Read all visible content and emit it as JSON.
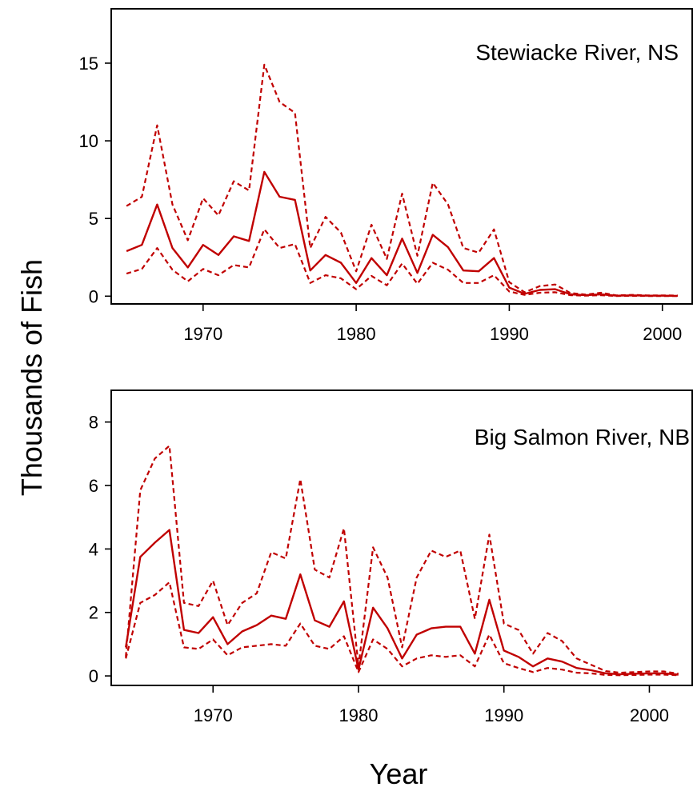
{
  "figure": {
    "ylabel": "Thousands of Fish",
    "xlabel": "Year",
    "line_color": "#c00000"
  },
  "chart_data": [
    {
      "type": "line",
      "title": "Stewiacke River, NS",
      "xlabel": "",
      "ylabel": "",
      "xlim": [
        1964,
        2002
      ],
      "ylim": [
        -0.5,
        18.5
      ],
      "xticks": [
        1970,
        1980,
        1990,
        2000
      ],
      "yticks": [
        0,
        5,
        10,
        15
      ],
      "grid": false,
      "x": [
        1965,
        1966,
        1967,
        1968,
        1969,
        1970,
        1971,
        1972,
        1973,
        1974,
        1975,
        1976,
        1977,
        1978,
        1979,
        1980,
        1981,
        1982,
        1983,
        1984,
        1985,
        1986,
        1987,
        1988,
        1989,
        1990,
        1991,
        1992,
        1993,
        1994,
        1995,
        1996,
        1997,
        1998,
        1999,
        2000,
        2001
      ],
      "series": [
        {
          "role": "upper",
          "style": "dashed",
          "values": [
            5.8,
            6.4,
            11.0,
            5.9,
            3.6,
            6.3,
            5.2,
            7.4,
            6.8,
            14.9,
            12.5,
            11.8,
            3.1,
            5.1,
            4.1,
            1.6,
            4.6,
            2.4,
            6.6,
            2.6,
            7.3,
            5.9,
            3.1,
            2.8,
            4.3,
            0.9,
            0.25,
            0.65,
            0.75,
            0.2,
            0.1,
            0.22,
            0.05,
            0.08,
            0.05,
            0.05,
            0.04
          ]
        },
        {
          "role": "estimate",
          "style": "solid",
          "values": [
            2.9,
            3.3,
            5.9,
            3.1,
            1.85,
            3.3,
            2.65,
            3.85,
            3.55,
            8.0,
            6.4,
            6.2,
            1.65,
            2.65,
            2.15,
            0.85,
            2.45,
            1.35,
            3.7,
            1.5,
            3.95,
            3.15,
            1.65,
            1.6,
            2.45,
            0.55,
            0.15,
            0.4,
            0.45,
            0.12,
            0.06,
            0.12,
            0.03,
            0.05,
            0.03,
            0.03,
            0.02
          ]
        },
        {
          "role": "lower",
          "style": "dashed",
          "values": [
            1.45,
            1.75,
            3.1,
            1.7,
            0.95,
            1.75,
            1.35,
            2.0,
            1.85,
            4.3,
            3.1,
            3.35,
            0.85,
            1.35,
            1.15,
            0.45,
            1.3,
            0.7,
            2.1,
            0.8,
            2.15,
            1.7,
            0.85,
            0.85,
            1.35,
            0.3,
            0.08,
            0.22,
            0.25,
            0.06,
            0.03,
            0.06,
            0.01,
            0.02,
            0.01,
            0.01,
            0.01
          ]
        }
      ]
    },
    {
      "type": "line",
      "title": "Big Salmon River, NB",
      "xlabel": "",
      "ylabel": "",
      "xlim": [
        1963,
        2003
      ],
      "ylim": [
        -0.3,
        9.0
      ],
      "xticks": [
        1970,
        1980,
        1990,
        2000
      ],
      "yticks": [
        0,
        2,
        4,
        6,
        8
      ],
      "grid": false,
      "x": [
        1964,
        1965,
        1966,
        1967,
        1968,
        1969,
        1970,
        1971,
        1972,
        1973,
        1974,
        1975,
        1976,
        1977,
        1978,
        1979,
        1980,
        1981,
        1982,
        1983,
        1984,
        1985,
        1986,
        1987,
        1988,
        1989,
        1990,
        1991,
        1992,
        1993,
        1994,
        1995,
        1996,
        1997,
        1998,
        1999,
        2000,
        2001,
        2002
      ],
      "series": [
        {
          "role": "upper",
          "style": "dashed",
          "values": [
            0.6,
            5.85,
            6.85,
            7.25,
            2.3,
            2.2,
            3.0,
            1.6,
            2.3,
            2.6,
            3.9,
            3.7,
            6.2,
            3.35,
            3.1,
            4.65,
            0.3,
            4.05,
            3.1,
            0.9,
            3.1,
            3.95,
            3.75,
            3.95,
            1.8,
            4.45,
            1.65,
            1.45,
            0.7,
            1.35,
            1.1,
            0.55,
            0.35,
            0.15,
            0.1,
            0.12,
            0.14,
            0.14,
            0.07
          ]
        },
        {
          "role": "estimate",
          "style": "solid",
          "values": [
            0.9,
            3.75,
            4.2,
            4.6,
            1.45,
            1.35,
            1.85,
            1.0,
            1.4,
            1.6,
            1.9,
            1.8,
            3.2,
            1.75,
            1.55,
            2.35,
            0.2,
            2.15,
            1.5,
            0.55,
            1.3,
            1.5,
            1.55,
            1.55,
            0.7,
            2.4,
            0.8,
            0.6,
            0.3,
            0.55,
            0.45,
            0.25,
            0.18,
            0.08,
            0.05,
            0.07,
            0.08,
            0.08,
            0.04
          ]
        },
        {
          "role": "lower",
          "style": "dashed",
          "values": [
            0.55,
            2.3,
            2.55,
            2.95,
            0.9,
            0.85,
            1.15,
            0.65,
            0.9,
            0.95,
            1.0,
            0.95,
            1.65,
            0.95,
            0.85,
            1.25,
            0.12,
            1.15,
            0.85,
            0.3,
            0.55,
            0.65,
            0.6,
            0.65,
            0.3,
            1.3,
            0.4,
            0.25,
            0.12,
            0.25,
            0.2,
            0.1,
            0.08,
            0.03,
            0.02,
            0.03,
            0.04,
            0.04,
            0.02
          ]
        }
      ]
    }
  ]
}
